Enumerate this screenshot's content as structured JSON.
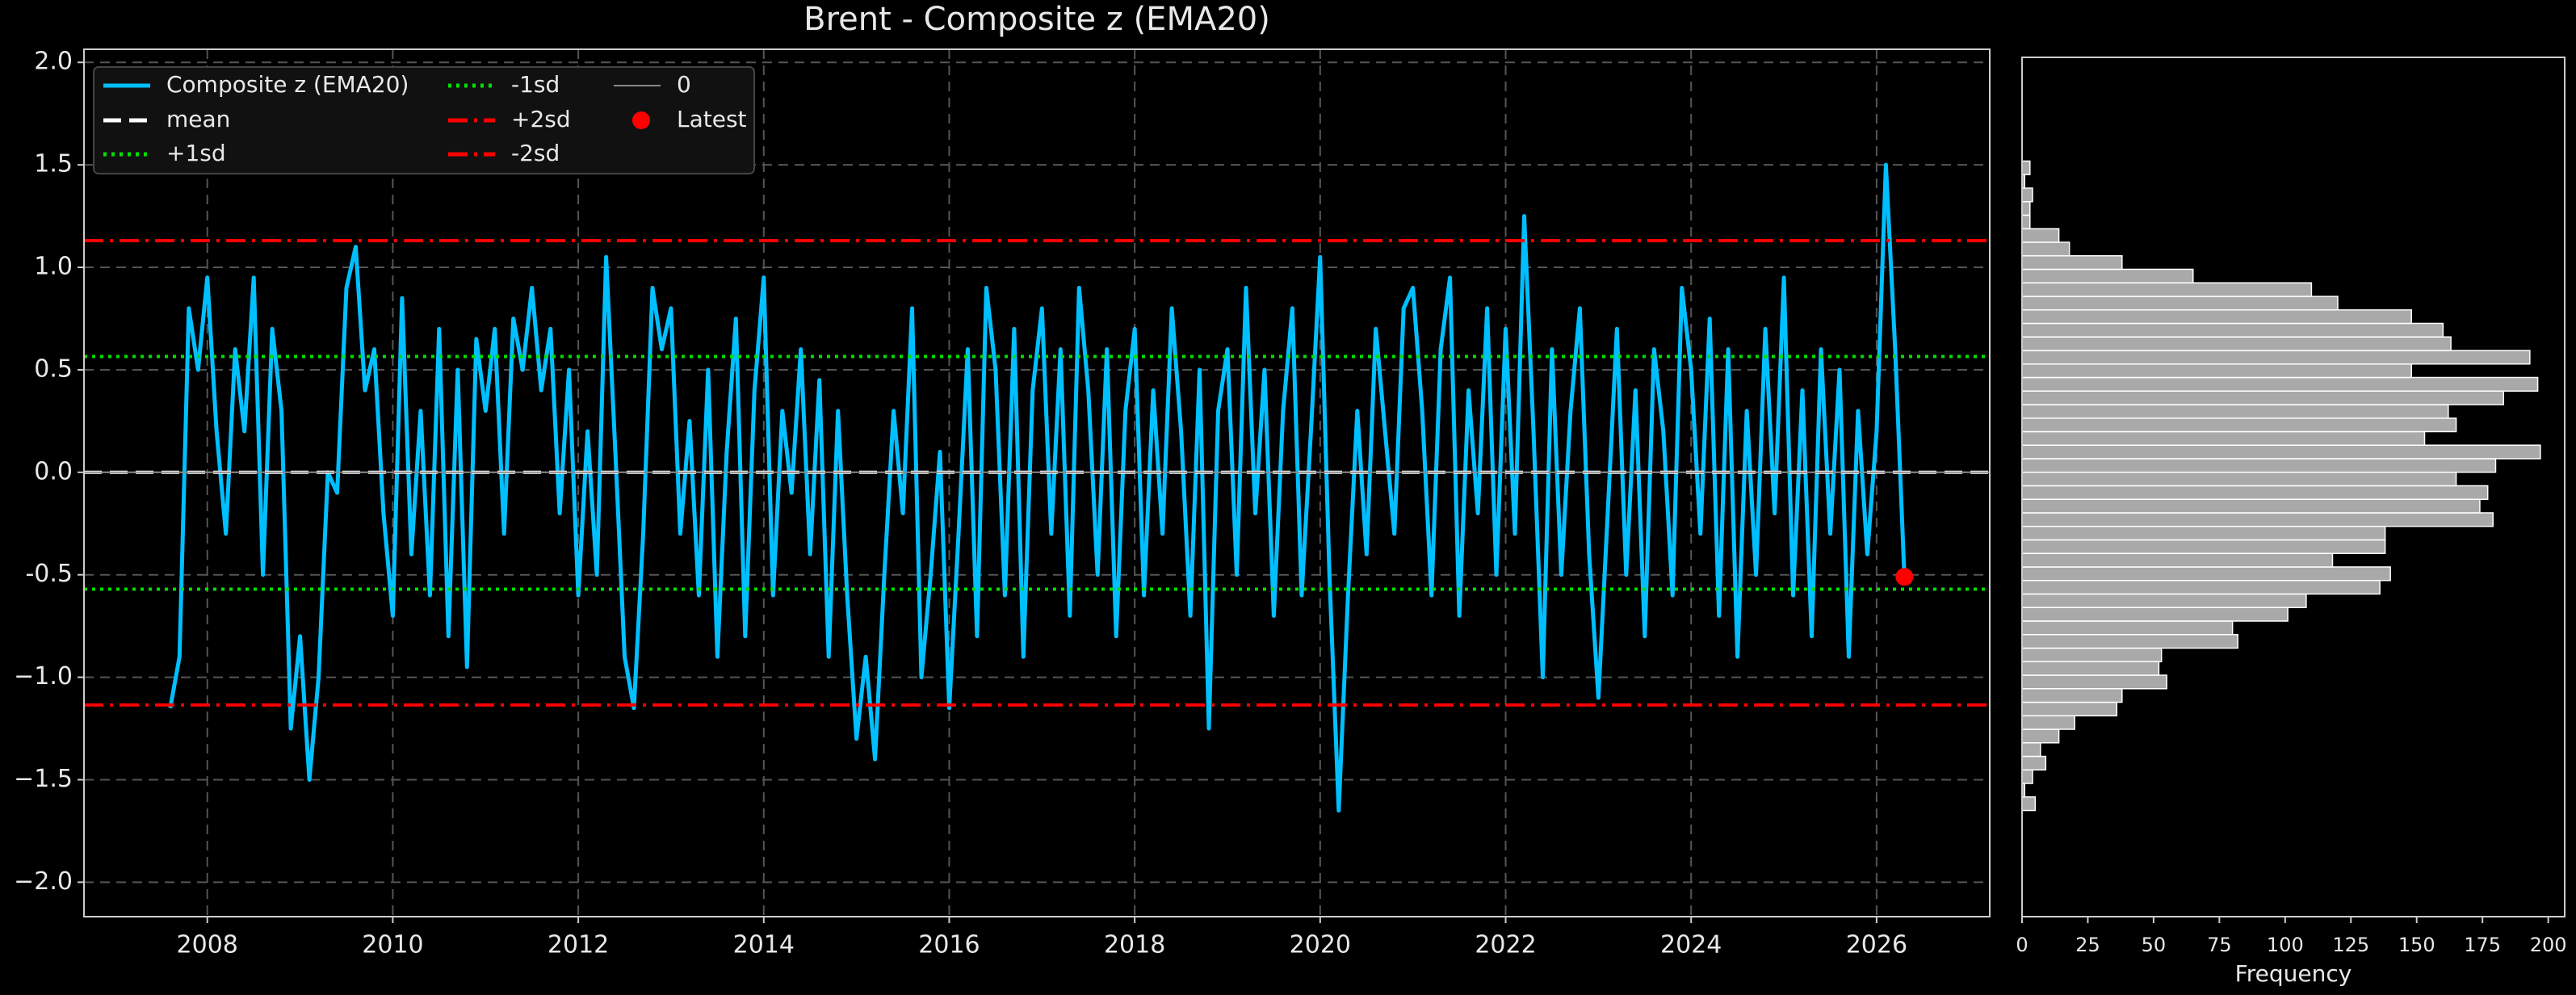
{
  "chart_data": [
    {
      "type": "line",
      "title": "Brent - Composite z (EMA20)",
      "x": [
        2007.6,
        2007.7,
        2007.8,
        2007.9,
        2008.0,
        2008.1,
        2008.2,
        2008.3,
        2008.4,
        2008.5,
        2008.6,
        2008.7,
        2008.8,
        2008.9,
        2009.0,
        2009.1,
        2009.2,
        2009.3,
        2009.4,
        2009.5,
        2009.6,
        2009.7,
        2009.8,
        2009.9,
        2010.0,
        2010.1,
        2010.2,
        2010.3,
        2010.4,
        2010.5,
        2010.6,
        2010.7,
        2010.8,
        2010.9,
        2011.0,
        2011.1,
        2011.2,
        2011.3,
        2011.4,
        2011.5,
        2011.6,
        2011.7,
        2011.8,
        2011.9,
        2012.0,
        2012.1,
        2012.2,
        2012.3,
        2012.4,
        2012.5,
        2012.6,
        2012.7,
        2012.8,
        2012.9,
        2013.0,
        2013.1,
        2013.2,
        2013.3,
        2013.4,
        2013.5,
        2013.6,
        2013.7,
        2013.8,
        2013.9,
        2014.0,
        2014.1,
        2014.2,
        2014.3,
        2014.4,
        2014.5,
        2014.6,
        2014.7,
        2014.8,
        2014.9,
        2015.0,
        2015.1,
        2015.2,
        2015.3,
        2015.4,
        2015.5,
        2015.6,
        2015.7,
        2015.8,
        2015.9,
        2016.0,
        2016.1,
        2016.2,
        2016.3,
        2016.4,
        2016.5,
        2016.6,
        2016.7,
        2016.8,
        2016.9,
        2017.0,
        2017.1,
        2017.2,
        2017.3,
        2017.4,
        2017.5,
        2017.6,
        2017.7,
        2017.8,
        2017.9,
        2018.0,
        2018.1,
        2018.2,
        2018.3,
        2018.4,
        2018.5,
        2018.6,
        2018.7,
        2018.8,
        2018.9,
        2019.0,
        2019.1,
        2019.2,
        2019.3,
        2019.4,
        2019.5,
        2019.6,
        2019.7,
        2019.8,
        2019.9,
        2020.0,
        2020.1,
        2020.2,
        2020.3,
        2020.4,
        2020.5,
        2020.6,
        2020.7,
        2020.8,
        2020.9,
        2021.0,
        2021.1,
        2021.2,
        2021.3,
        2021.4,
        2021.5,
        2021.6,
        2021.7,
        2021.8,
        2021.9,
        2022.0,
        2022.1,
        2022.2,
        2022.3,
        2022.4,
        2022.5,
        2022.6,
        2022.7,
        2022.8,
        2022.9,
        2023.0,
        2023.1,
        2023.2,
        2023.3,
        2023.4,
        2023.5,
        2023.6,
        2023.7,
        2023.8,
        2023.9,
        2024.0,
        2024.1,
        2024.2,
        2024.3,
        2024.4,
        2024.5,
        2024.6,
        2024.7,
        2024.8,
        2024.9,
        2025.0,
        2025.1,
        2025.2,
        2025.3,
        2025.4,
        2025.5,
        2025.6,
        2025.7,
        2025.8,
        2025.9,
        2026.0,
        2026.1,
        2026.2,
        2026.3
      ],
      "series": [
        {
          "name": "Composite z (EMA20)",
          "color": "#00bfff",
          "values": [
            -1.15,
            -0.9,
            0.8,
            0.5,
            0.95,
            0.2,
            -0.3,
            0.6,
            0.2,
            0.95,
            -0.5,
            0.7,
            0.3,
            -1.25,
            -0.8,
            -1.5,
            -1.0,
            0.0,
            -0.1,
            0.9,
            1.1,
            0.4,
            0.6,
            -0.2,
            -0.7,
            0.85,
            -0.4,
            0.3,
            -0.6,
            0.7,
            -0.8,
            0.5,
            -0.95,
            0.65,
            0.3,
            0.7,
            -0.3,
            0.75,
            0.5,
            0.9,
            0.4,
            0.7,
            -0.2,
            0.5,
            -0.6,
            0.2,
            -0.5,
            1.05,
            0.1,
            -0.9,
            -1.15,
            -0.3,
            0.9,
            0.6,
            0.8,
            -0.3,
            0.25,
            -0.6,
            0.5,
            -0.9,
            0.1,
            0.75,
            -0.8,
            0.4,
            0.95,
            -0.6,
            0.3,
            -0.1,
            0.6,
            -0.4,
            0.45,
            -0.9,
            0.3,
            -0.6,
            -1.3,
            -0.9,
            -1.4,
            -0.5,
            0.3,
            -0.2,
            0.8,
            -1.0,
            -0.5,
            0.1,
            -1.15,
            -0.3,
            0.6,
            -0.8,
            0.9,
            0.5,
            -0.6,
            0.7,
            -0.9,
            0.4,
            0.8,
            -0.3,
            0.6,
            -0.7,
            0.9,
            0.4,
            -0.5,
            0.6,
            -0.8,
            0.3,
            0.7,
            -0.6,
            0.4,
            -0.3,
            0.8,
            0.2,
            -0.7,
            0.5,
            -1.25,
            0.3,
            0.6,
            -0.5,
            0.9,
            -0.2,
            0.5,
            -0.7,
            0.3,
            0.8,
            -0.6,
            0.2,
            1.05,
            -0.5,
            -1.65,
            -0.6,
            0.3,
            -0.4,
            0.7,
            0.2,
            -0.3,
            0.8,
            0.9,
            0.3,
            -0.6,
            0.6,
            0.95,
            -0.7,
            0.4,
            -0.2,
            0.8,
            -0.5,
            0.7,
            -0.3,
            1.25,
            0.2,
            -1.0,
            0.6,
            -0.5,
            0.3,
            0.8,
            -0.4,
            -1.1,
            -0.2,
            0.7,
            -0.5,
            0.4,
            -0.8,
            0.6,
            0.2,
            -0.6,
            0.9,
            0.5,
            -0.3,
            0.75,
            -0.7,
            0.6,
            -0.9,
            0.3,
            -0.5,
            0.7,
            -0.2,
            0.95,
            -0.6,
            0.4,
            -0.8,
            0.6,
            -0.3,
            0.5,
            -0.9,
            0.3,
            -0.4,
            0.2,
            1.5,
            0.6,
            -0.51
          ]
        }
      ],
      "reference_lines": [
        {
          "name": "mean",
          "value": 0.0,
          "color": "#ffffff",
          "style": "dashed"
        },
        {
          "name": "+1sd",
          "value": 0.565,
          "color": "#00e000",
          "style": "dotted"
        },
        {
          "name": "-1sd",
          "value": -0.57,
          "color": "#00e000",
          "style": "dotted"
        },
        {
          "name": "+2sd",
          "value": 1.13,
          "color": "#ff0000",
          "style": "dashdot"
        },
        {
          "name": "-2sd",
          "value": -1.135,
          "color": "#ff0000",
          "style": "dashdot"
        },
        {
          "name": "0",
          "value": 0,
          "color": "#888888",
          "style": "solid"
        }
      ],
      "latest": {
        "name": "Latest",
        "x": 2026.3,
        "value": -0.51,
        "color": "#ff0000"
      },
      "xlim": [
        2006.67,
        2027.22
      ],
      "xticks": [
        2008,
        2010,
        2012,
        2014,
        2016,
        2018,
        2020,
        2022,
        2024,
        2026
      ],
      "ylim": [
        -2.168,
        2.064
      ],
      "yticks": [
        {
          "value": 2,
          "label": "2.0"
        },
        1.5,
        {
          "value": 1,
          "label": "1.0"
        },
        0.5,
        {
          "value": 0,
          "label": "0.0"
        },
        -0.5,
        {
          "value": -1,
          "label": "−1.0"
        },
        {
          "value": -1.5,
          "label": "−1.5"
        },
        {
          "value": -2,
          "label": "−2.0"
        }
      ],
      "grid": true,
      "legend": "upper left"
    },
    {
      "type": "histogram",
      "orientation": "horizontal",
      "xlabel": "Frequency",
      "color": "#a9a9a9",
      "bins": [
        -1.65,
        -1.584,
        -1.518,
        -1.452,
        -1.386,
        -1.32,
        -1.254,
        -1.188,
        -1.122,
        -1.056,
        -0.99,
        -0.924,
        -0.858,
        -0.792,
        -0.726,
        -0.66,
        -0.594,
        -0.528,
        -0.462,
        -0.396,
        -0.33,
        -0.264,
        -0.198,
        -0.132,
        -0.066,
        0,
        0.066,
        0.132,
        0.198,
        0.264,
        0.33,
        0.396,
        0.462,
        0.528,
        0.594,
        0.66,
        0.726,
        0.792,
        0.858,
        0.924,
        0.99,
        1.056,
        1.122,
        1.188,
        1.254,
        1.32,
        1.386,
        1.452,
        1.518
      ],
      "counts": [
        5,
        1,
        4,
        9,
        7,
        14,
        20,
        36,
        38,
        55,
        52,
        53,
        82,
        80,
        101,
        108,
        136,
        140,
        118,
        138,
        138,
        179,
        174,
        177,
        165,
        180,
        197,
        153,
        165,
        162,
        183,
        196,
        148,
        193,
        163,
        160,
        148,
        120,
        110,
        65,
        38,
        18,
        14,
        3,
        3,
        4,
        1,
        3
      ],
      "xlim": [
        0,
        206.25
      ],
      "xticks": [
        0,
        25,
        50,
        75,
        100,
        125,
        150,
        175,
        200
      ],
      "ylim": [
        -2.168,
        2.024
      ]
    }
  ]
}
